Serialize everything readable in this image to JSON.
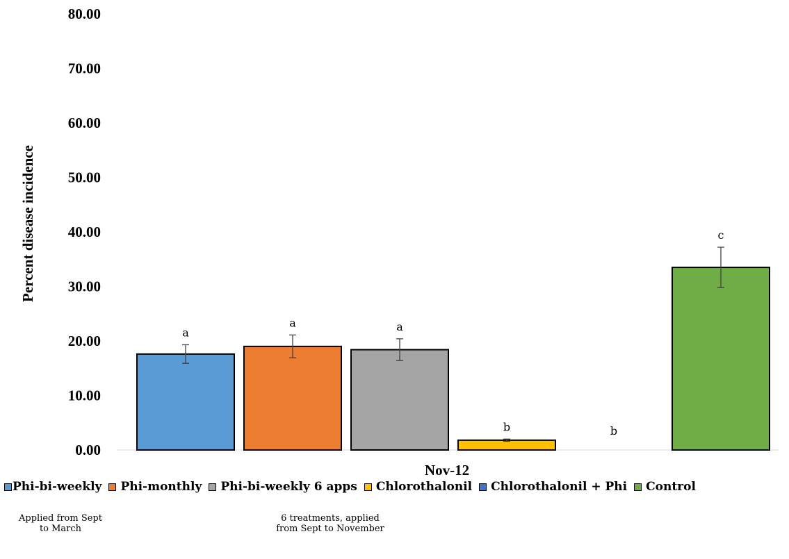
{
  "chart_data": {
    "type": "bar",
    "ylabel": "Percent disease incidence",
    "ylim": [
      0,
      80
    ],
    "y_ticks": [
      "0.00",
      "10.00",
      "20.00",
      "30.00",
      "40.00",
      "50.00",
      "60.00",
      "70.00",
      "80.00"
    ],
    "categories": [
      "Nov-12"
    ],
    "grid": false,
    "legend_position": "bottom",
    "series": [
      {
        "name": "Phi-bi-weekly",
        "value": 17.6,
        "error": 1.7,
        "letter": "a",
        "color": "#5b9bd5"
      },
      {
        "name": "Phi-monthly",
        "value": 19.0,
        "error": 2.1,
        "letter": "a",
        "color": "#ed7d31"
      },
      {
        "name": "Phi-bi-weekly 6 apps",
        "value": 18.4,
        "error": 2.0,
        "letter": "a",
        "color": "#a5a5a5"
      },
      {
        "name": "Chlorothalonil",
        "value": 1.8,
        "error": 0.2,
        "letter": "b",
        "color": "#ffc000"
      },
      {
        "name": "Chlorothalonil + Phi",
        "value": 0.0,
        "error": 0.0,
        "letter": "b",
        "color": "#4472c4"
      },
      {
        "name": "Control",
        "value": 33.5,
        "error": 3.7,
        "letter": "c",
        "color": "#70ad47"
      }
    ]
  },
  "annotations": {
    "note1": "Applied from Sept\nto March",
    "note2": "6 treatments, applied\nfrom Sept to November"
  }
}
